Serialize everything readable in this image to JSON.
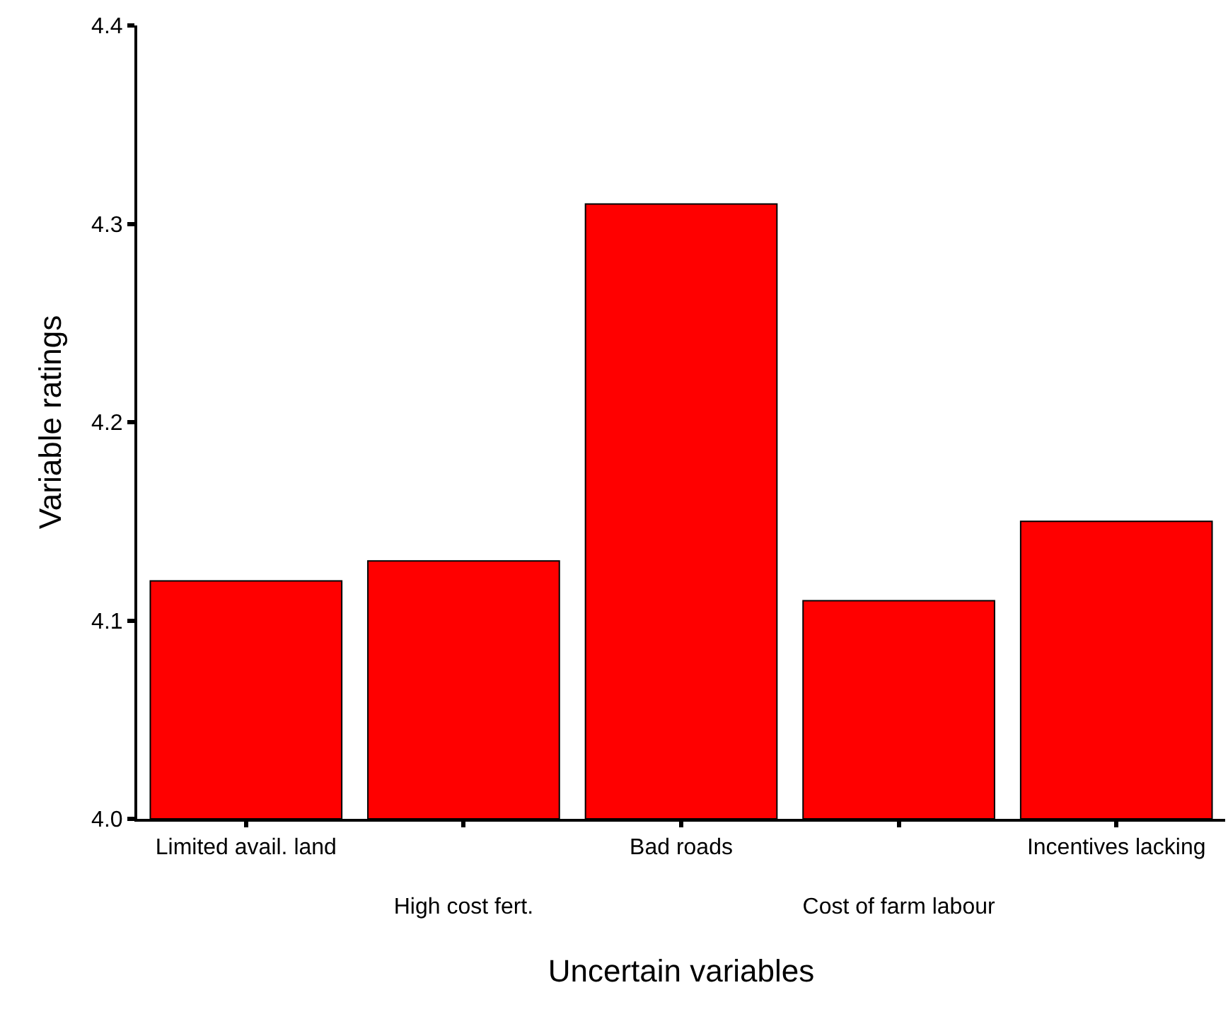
{
  "chart_data": {
    "type": "bar",
    "xlabel": "Uncertain variables",
    "ylabel": "Variable ratings",
    "categories": [
      "Limited avail. land",
      "High cost fert.",
      "Bad roads",
      "Cost of farm labour",
      "Incentives lacking"
    ],
    "values": [
      4.12,
      4.13,
      4.31,
      4.11,
      4.15
    ],
    "color": "#ff0000",
    "ylim": [
      4.0,
      4.4
    ],
    "yticks": [
      {
        "value": 4.0,
        "label": "4.0"
      },
      4.1,
      4.2,
      4.3,
      4.4
    ],
    "legend": false
  }
}
